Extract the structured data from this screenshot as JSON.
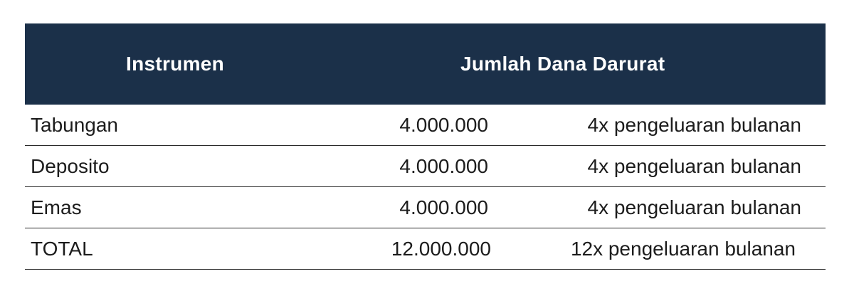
{
  "table": {
    "headers": {
      "instrument": "Instrumen",
      "amount": "Jumlah Dana Darurat"
    },
    "rows": [
      {
        "name": "Tabungan",
        "value": "4.000.000",
        "note": "4x pengeluaran bulanan"
      },
      {
        "name": "Deposito",
        "value": "4.000.000",
        "note": "4x pengeluaran bulanan"
      },
      {
        "name": "Emas",
        "value": "4.000.000",
        "note": "4x pengeluaran bulanan"
      },
      {
        "name": "TOTAL",
        "value": "12.000.000",
        "note": "12x pengeluaran bulanan"
      }
    ]
  },
  "colors": {
    "header_background": "#1b3049",
    "header_text": "#ffffff",
    "body_text": "#1c1c1c",
    "row_divider": "#2a2a2a"
  }
}
